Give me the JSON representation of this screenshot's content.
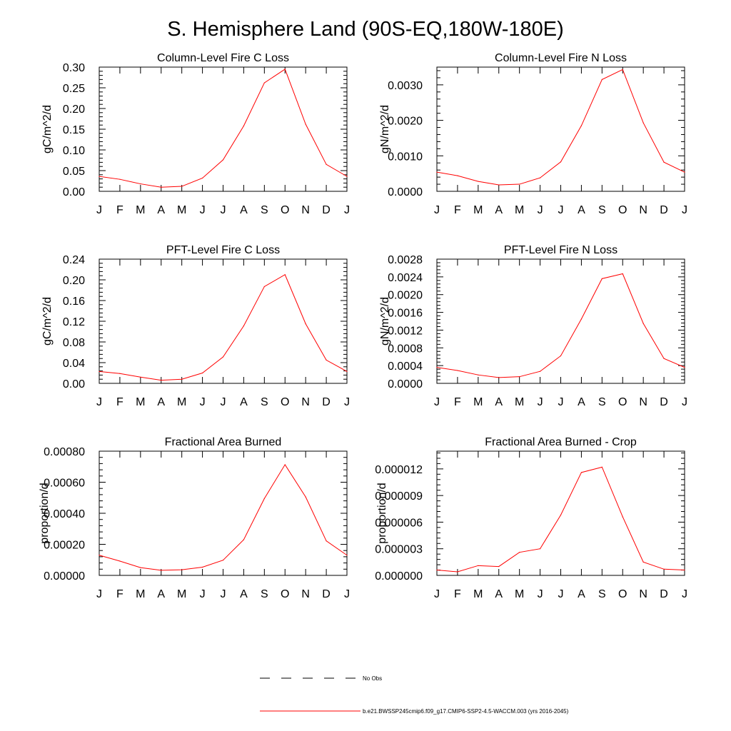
{
  "figure": {
    "title": "S. Hemisphere Land (90S-EQ,180W-180E)"
  },
  "legend": {
    "entries": [
      {
        "label": "No Obs",
        "style": "dashed",
        "color": "#000000"
      },
      {
        "label": "b.e21.BWSSP245cmip6.f09_g17.CMIP6-SSP2-4.5-WACCM.003 (yrs 2016-2045)",
        "style": "solid",
        "color": "#ff0000"
      }
    ]
  },
  "chart_data": [
    {
      "type": "line",
      "title": "Column-Level Fire C Loss",
      "xlabel": "",
      "ylabel": "gC/m^2/d",
      "categories": [
        "J",
        "F",
        "M",
        "A",
        "M",
        "J",
        "J",
        "A",
        "S",
        "O",
        "N",
        "D",
        "J"
      ],
      "ylim": [
        0,
        0.3
      ],
      "yticks": [
        0,
        0.05,
        0.1,
        0.15,
        0.2,
        0.25,
        0.3
      ],
      "ytick_labels": [
        "0.00",
        "0.05",
        "0.10",
        "0.15",
        "0.20",
        "0.25",
        "0.30"
      ],
      "series": [
        {
          "name": "b.e21.BWSSP245cmip6.f09_g17.CMIP6-SSP2-4.5-WACCM.003",
          "color": "#ff0000",
          "values": [
            0.036,
            0.029,
            0.018,
            0.01,
            0.012,
            0.032,
            0.076,
            0.158,
            0.262,
            0.295,
            0.162,
            0.065,
            0.036
          ]
        }
      ]
    },
    {
      "type": "line",
      "title": "Column-Level Fire N Loss",
      "xlabel": "",
      "ylabel": "gN/m^2/d",
      "categories": [
        "J",
        "F",
        "M",
        "A",
        "M",
        "J",
        "J",
        "A",
        "S",
        "O",
        "N",
        "D",
        "J"
      ],
      "ylim": [
        0,
        0.0035
      ],
      "yticks": [
        0,
        0.001,
        0.002,
        0.003
      ],
      "ytick_labels": [
        "0.0000",
        "0.0010",
        "0.0020",
        "0.0030"
      ],
      "series": [
        {
          "name": "b.e21.BWSSP245cmip6.f09_g17.CMIP6-SSP2-4.5-WACCM.003",
          "color": "#ff0000",
          "values": [
            0.00054,
            0.00044,
            0.00028,
            0.00018,
            0.0002,
            0.00038,
            0.00083,
            0.00185,
            0.00315,
            0.00343,
            0.00193,
            0.00082,
            0.00054
          ]
        }
      ]
    },
    {
      "type": "line",
      "title": "PFT-Level Fire C Loss",
      "xlabel": "",
      "ylabel": "gC/m^2/d",
      "categories": [
        "J",
        "F",
        "M",
        "A",
        "M",
        "J",
        "J",
        "A",
        "S",
        "O",
        "N",
        "D",
        "J"
      ],
      "ylim": [
        0,
        0.24
      ],
      "yticks": [
        0,
        0.04,
        0.08,
        0.12,
        0.16,
        0.2,
        0.24
      ],
      "ytick_labels": [
        "0.00",
        "0.04",
        "0.08",
        "0.12",
        "0.16",
        "0.20",
        "0.24"
      ],
      "series": [
        {
          "name": "b.e21.BWSSP245cmip6.f09_g17.CMIP6-SSP2-4.5-WACCM.003",
          "color": "#ff0000",
          "values": [
            0.023,
            0.019,
            0.012,
            0.006,
            0.008,
            0.02,
            0.051,
            0.111,
            0.187,
            0.21,
            0.115,
            0.045,
            0.023
          ]
        }
      ]
    },
    {
      "type": "line",
      "title": "PFT-Level Fire N Loss",
      "xlabel": "",
      "ylabel": "gN/m^2/d",
      "categories": [
        "J",
        "F",
        "M",
        "A",
        "M",
        "J",
        "J",
        "A",
        "S",
        "O",
        "N",
        "D",
        "J"
      ],
      "ylim": [
        0,
        0.0028
      ],
      "yticks": [
        0,
        0.0004,
        0.0008,
        0.0012,
        0.0016,
        0.002,
        0.0024,
        0.0028
      ],
      "ytick_labels": [
        "0.0000",
        "0.0004",
        "0.0008",
        "0.0012",
        "0.0016",
        "0.0020",
        "0.0024",
        "0.0028"
      ],
      "series": [
        {
          "name": "b.e21.BWSSP245cmip6.f09_g17.CMIP6-SSP2-4.5-WACCM.003",
          "color": "#ff0000",
          "values": [
            0.00036,
            0.00029,
            0.00019,
            0.00013,
            0.00015,
            0.00027,
            0.00062,
            0.00145,
            0.00236,
            0.00247,
            0.00135,
            0.00056,
            0.00036
          ]
        }
      ]
    },
    {
      "type": "line",
      "title": "Fractional Area Burned",
      "xlabel": "",
      "ylabel": "proportion/d",
      "categories": [
        "J",
        "F",
        "M",
        "A",
        "M",
        "J",
        "J",
        "A",
        "S",
        "O",
        "N",
        "D",
        "J"
      ],
      "ylim": [
        0,
        0.0008
      ],
      "yticks": [
        0,
        0.0002,
        0.0004,
        0.0006,
        0.0008
      ],
      "ytick_labels": [
        "0.00000",
        "0.00020",
        "0.00040",
        "0.00060",
        "0.00080"
      ],
      "series": [
        {
          "name": "b.e21.BWSSP245cmip6.f09_g17.CMIP6-SSP2-4.5-WACCM.003",
          "color": "#ff0000",
          "values": [
            0.00013,
            9.2e-05,
            5e-05,
            3.3e-05,
            3.6e-05,
            5.3e-05,
            9.8e-05,
            0.00023,
            0.000495,
            0.000713,
            0.000505,
            0.000222,
            0.00013
          ]
        }
      ]
    },
    {
      "type": "line",
      "title": "Fractional Area Burned - Crop",
      "xlabel": "",
      "ylabel": "proportion/d",
      "categories": [
        "J",
        "F",
        "M",
        "A",
        "M",
        "J",
        "J",
        "A",
        "S",
        "O",
        "N",
        "D",
        "J"
      ],
      "ylim": [
        0,
        1.4e-05
      ],
      "yticks": [
        0,
        3e-06,
        6e-06,
        9e-06,
        1.2e-05
      ],
      "ytick_labels": [
        "0.000000",
        "0.000003",
        "0.000006",
        "0.000009",
        "0.000012"
      ],
      "series": [
        {
          "name": "b.e21.BWSSP245cmip6.f09_g17.CMIP6-SSP2-4.5-WACCM.003",
          "color": "#ff0000",
          "values": [
            6e-07,
            4e-07,
            1.1e-06,
            1e-06,
            2.6e-06,
            3e-06,
            6.8e-06,
            1.16e-05,
            1.22e-05,
            6.6e-06,
            1.5e-06,
            7e-07,
            6e-07
          ]
        }
      ]
    }
  ]
}
